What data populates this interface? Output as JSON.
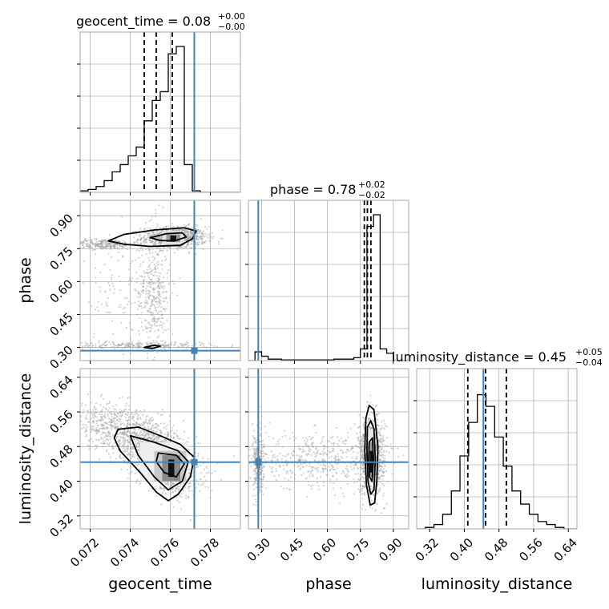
{
  "chart_data": {
    "type": "corner",
    "parameters": [
      "geocent_time",
      "phase",
      "luminosity_distance"
    ],
    "truths": {
      "geocent_time": 0.0772,
      "phase": 0.285,
      "luminosity_distance": 0.444
    },
    "titles": [
      {
        "text": "geocent_time = 0.08",
        "sup": "+0.00",
        "sub": "−0.00"
      },
      {
        "text": "phase = 0.78",
        "sup": "+0.02",
        "sub": "−0.02"
      },
      {
        "text": "luminosity_distance = 0.45",
        "sup": "+0.05",
        "sub": "−0.04"
      }
    ],
    "axes": {
      "geocent_time": {
        "range": [
          0.0715,
          0.0795
        ],
        "ticks": [
          0.072,
          0.074,
          0.076,
          0.078
        ],
        "tick_labels": [
          "0.072",
          "0.074",
          "0.076",
          "0.078"
        ]
      },
      "phase": {
        "range": [
          0.24,
          0.97
        ],
        "ticks": [
          0.3,
          0.45,
          0.6,
          0.75,
          0.9
        ],
        "tick_labels": [
          "0.30",
          "0.45",
          "0.60",
          "0.75",
          "0.90"
        ]
      },
      "luminosity_distance": {
        "range": [
          0.29,
          0.66
        ],
        "ticks": [
          0.32,
          0.4,
          0.48,
          0.56,
          0.64
        ],
        "tick_labels": [
          "0.32",
          "0.40",
          "0.48",
          "0.56",
          "0.64"
        ]
      }
    },
    "hist_1d": {
      "geocent_time": {
        "bin_edges": [
          0.0715,
          0.0719,
          0.0723,
          0.0727,
          0.0731,
          0.0735,
          0.0739,
          0.0743,
          0.0747,
          0.0751,
          0.0755,
          0.0759,
          0.0763,
          0.0767,
          0.0771,
          0.0775,
          0.0779,
          0.0795
        ],
        "counts": [
          0.01,
          0.02,
          0.04,
          0.08,
          0.14,
          0.19,
          0.25,
          0.31,
          0.49,
          0.63,
          0.69,
          0.95,
          1.0,
          0.19,
          0.01,
          0.0,
          0.0
        ],
        "quantiles": [
          0.0747,
          0.0753,
          0.0761
        ]
      },
      "phase": {
        "bin_edges": [
          0.24,
          0.27,
          0.3,
          0.33,
          0.36,
          0.39,
          0.42,
          0.45,
          0.48,
          0.51,
          0.54,
          0.57,
          0.6,
          0.63,
          0.66,
          0.69,
          0.72,
          0.75,
          0.78,
          0.81,
          0.84,
          0.87,
          0.9,
          0.97
        ],
        "counts": [
          0.0,
          0.06,
          0.03,
          0.01,
          0.01,
          0.005,
          0.005,
          0.005,
          0.005,
          0.005,
          0.005,
          0.005,
          0.005,
          0.01,
          0.01,
          0.01,
          0.02,
          0.08,
          0.92,
          1.0,
          0.08,
          0.05,
          0.0
        ],
        "quantiles": [
          0.768,
          0.782,
          0.798
        ]
      },
      "luminosity_distance": {
        "bin_edges": [
          0.29,
          0.31,
          0.33,
          0.35,
          0.37,
          0.39,
          0.41,
          0.43,
          0.45,
          0.47,
          0.49,
          0.51,
          0.53,
          0.55,
          0.57,
          0.59,
          0.61,
          0.63,
          0.66
        ],
        "counts": [
          0.0,
          0.01,
          0.03,
          0.1,
          0.26,
          0.5,
          0.73,
          0.92,
          0.84,
          0.63,
          0.43,
          0.26,
          0.17,
          0.1,
          0.05,
          0.03,
          0.01,
          0.0
        ],
        "quantiles": [
          0.408,
          0.449,
          0.497
        ]
      }
    },
    "hist_2d": [
      {
        "x": "geocent_time",
        "y": "phase",
        "peak": [
          0.0761,
          0.795
        ],
        "secondary": [
          0.0752,
          0.305
        ]
      },
      {
        "x": "geocent_time",
        "y": "luminosity_distance",
        "peak": [
          0.0761,
          0.44
        ]
      },
      {
        "x": "phase",
        "y": "luminosity_distance",
        "peak": [
          0.8,
          0.445
        ],
        "secondary": [
          0.285,
          0.445
        ]
      }
    ],
    "grid": true,
    "colors": {
      "truth": "#4682b4",
      "hist": "#000000",
      "points": "#9e9e9e",
      "grid": "#b0b0b0"
    }
  }
}
